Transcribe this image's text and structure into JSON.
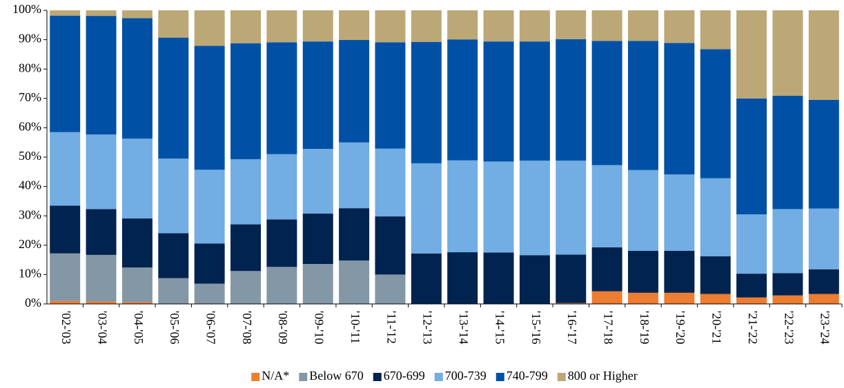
{
  "chart_data": {
    "type": "stacked_bar",
    "categories": [
      "'02-'03",
      "'03-'04",
      "'04-'05",
      "'05-'06",
      "'06-'07",
      "'07-'08",
      "'08-'09",
      "'09-'10",
      "'10-'11",
      "'11-'12",
      "'12-'13",
      "'13-'14",
      "'14-'15",
      "'15-'16",
      "'16-'17",
      "'17-'18",
      "'18-'19",
      "'19-'20",
      "'20-'21",
      "'21-'22",
      "'22-'23",
      "'23-'24"
    ],
    "series": [
      {
        "name": "N/A*",
        "color": "#ed7d31",
        "values": [
          1,
          0.8,
          0.6,
          0.1,
          0.1,
          0,
          0,
          0,
          0,
          0,
          0,
          0,
          0,
          0,
          0.3,
          4.3,
          3.8,
          3.8,
          3.4,
          2.2,
          2.9,
          3.4
        ]
      },
      {
        "name": "Below 670",
        "color": "#8497a7",
        "values": [
          16.2,
          15.9,
          11.8,
          8.7,
          6.8,
          11.2,
          12.6,
          13.6,
          14.8,
          10,
          0,
          0,
          0,
          0,
          0,
          0,
          0,
          0,
          0,
          0,
          0,
          0
        ]
      },
      {
        "name": "670-699",
        "color": "#002350",
        "values": [
          16.3,
          15.6,
          16.7,
          15.3,
          13.7,
          15.9,
          16.2,
          17.2,
          17.8,
          19.8,
          17.2,
          17.6,
          17.5,
          16.6,
          16.5,
          15,
          14.3,
          14.3,
          12.8,
          8.1,
          7.6,
          8.4
        ]
      },
      {
        "name": "700-739",
        "color": "#72ade3",
        "values": [
          25,
          25.4,
          27.2,
          25.4,
          25.1,
          22.2,
          22.2,
          22,
          22.4,
          23.1,
          30.7,
          31.3,
          31,
          32.2,
          32,
          28,
          27.5,
          26,
          26.6,
          20.2,
          21.8,
          20.7
        ]
      },
      {
        "name": "740-799",
        "color": "#0051a6",
        "values": [
          39.7,
          40.4,
          41,
          41.2,
          42.2,
          39.5,
          38.1,
          36.6,
          34.9,
          36.2,
          41.3,
          41.2,
          40.9,
          40.6,
          41.4,
          42.3,
          44,
          44.8,
          44,
          39.5,
          38.6,
          37
        ]
      },
      {
        "name": "800 or Higher",
        "color": "#bca876",
        "values": [
          1.8,
          1.9,
          2.7,
          9.3,
          12.1,
          11.2,
          10.9,
          10.6,
          10.1,
          10.9,
          10.8,
          9.9,
          10.6,
          10.6,
          9.8,
          10.4,
          10.4,
          11.1,
          13.2,
          30,
          29.1,
          30.5
        ]
      }
    ],
    "ylim": [
      0,
      100
    ],
    "yticks": [
      {
        "value": 0,
        "label": "0%"
      },
      {
        "value": 10,
        "label": "10%"
      },
      {
        "value": 20,
        "label": "20%"
      },
      {
        "value": 30,
        "label": "30%"
      },
      {
        "value": 40,
        "label": "40%"
      },
      {
        "value": 50,
        "label": "50%"
      },
      {
        "value": 60,
        "label": "60%"
      },
      {
        "value": 70,
        "label": "70%"
      },
      {
        "value": 80,
        "label": "80%"
      },
      {
        "value": 90,
        "label": "90%"
      },
      {
        "value": 100,
        "label": "100%"
      }
    ],
    "legend": "bottom"
  }
}
